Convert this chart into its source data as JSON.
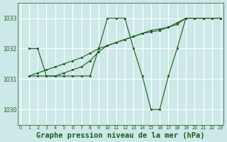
{
  "background_color": "#cce8e8",
  "plot_background": "#cce8e8",
  "grid_color": "#ffffff",
  "line_color": "#1a5c1a",
  "marker_color": "#1a5c1a",
  "xlabel": "Graphe pression niveau de la mer (hPa)",
  "xlabel_fontsize": 7.5,
  "ylim": [
    1029.5,
    1033.5
  ],
  "xlim": [
    -0.3,
    23.3
  ],
  "yticks": [
    1030,
    1031,
    1032,
    1033
  ],
  "xticks": [
    0,
    1,
    2,
    3,
    4,
    5,
    6,
    7,
    8,
    9,
    10,
    11,
    12,
    13,
    14,
    15,
    16,
    17,
    18,
    19,
    20,
    21,
    22,
    23
  ],
  "series": [
    [
      null,
      1032.0,
      1032.0,
      1031.1,
      1031.1,
      1031.1,
      1031.1,
      1031.1,
      1031.1,
      1032.0,
      1033.0,
      1033.0,
      1033.0,
      1032.0,
      1031.1,
      1030.0,
      1030.0,
      1031.1,
      1032.0,
      1033.0,
      1033.0,
      1033.0,
      1033.0,
      1033.0
    ],
    [
      null,
      1031.1,
      1031.1,
      1031.1,
      1031.1,
      1031.2,
      1031.3,
      1031.4,
      1031.6,
      1031.9,
      1032.1,
      1032.2,
      1032.3,
      1032.4,
      1032.5,
      1032.6,
      1032.65,
      1032.7,
      1032.8,
      1033.0,
      1033.0,
      1033.0,
      1033.0,
      1033.0
    ],
    [
      null,
      1031.1,
      1031.2,
      1031.3,
      1031.4,
      1031.5,
      1031.6,
      1031.7,
      1031.85,
      1032.0,
      1032.1,
      1032.2,
      1032.3,
      1032.4,
      1032.5,
      1032.55,
      1032.6,
      1032.7,
      1032.85,
      1033.0,
      1033.0,
      1033.0,
      1033.0,
      1033.0
    ]
  ]
}
